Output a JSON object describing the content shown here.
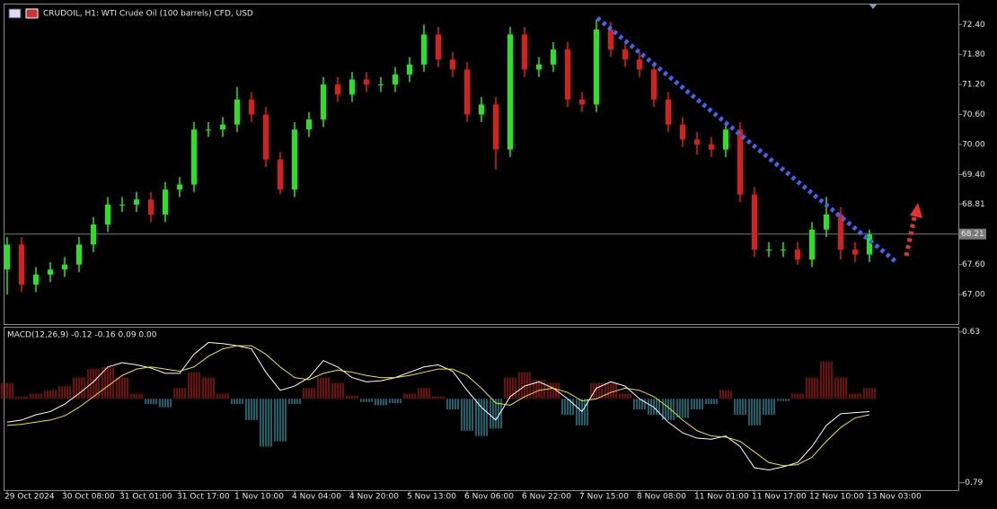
{
  "chart_data": [
    {
      "type": "candlestick",
      "title": "CRUDOIL, H1:  WTI Crude Oil (100 barrels) CFD, USD",
      "x": [
        "29 Oct 2024",
        null,
        null,
        null,
        "30 Oct 08:00",
        null,
        null,
        null,
        "31 Oct 01:00",
        null,
        null,
        null,
        "31 Oct 17:00",
        null,
        null,
        null,
        "1 Nov 10:00",
        null,
        null,
        null,
        "4 Nov 04:00",
        null,
        null,
        null,
        "4 Nov 20:00",
        null,
        null,
        null,
        "5 Nov 13:00",
        null,
        null,
        null,
        "6 Nov 06:00",
        null,
        null,
        null,
        "6 Nov 22:00",
        null,
        null,
        null,
        "7 Nov 15:00",
        null,
        null,
        null,
        "8 Nov 08:00",
        null,
        null,
        null,
        "11 Nov 01:00",
        null,
        null,
        null,
        "11 Nov 17:00",
        null,
        null,
        null,
        "12 Nov 10:00",
        null,
        null,
        null,
        "13 Nov 03:00"
      ],
      "open": [
        67.5,
        68.0,
        67.2,
        67.4,
        67.5,
        67.6,
        68.0,
        68.4,
        68.8,
        68.8,
        68.9,
        68.6,
        69.1,
        69.2,
        70.3,
        70.3,
        70.4,
        70.9,
        70.6,
        69.7,
        69.1,
        70.3,
        70.5,
        71.2,
        71.0,
        71.3,
        71.2,
        71.2,
        71.4,
        71.6,
        72.2,
        71.7,
        71.5,
        70.6,
        70.8,
        69.9,
        72.2,
        71.5,
        71.6,
        71.9,
        70.9,
        70.8,
        72.3,
        71.9,
        71.7,
        71.5,
        70.9,
        70.4,
        70.1,
        70.0,
        69.9,
        70.3,
        69.0,
        67.9,
        67.9,
        67.9,
        67.7,
        68.3,
        68.6,
        67.9,
        67.8
      ],
      "high": [
        68.15,
        68.15,
        67.55,
        67.65,
        67.75,
        68.15,
        68.55,
        68.95,
        68.95,
        69.05,
        69.05,
        69.25,
        69.35,
        70.45,
        70.45,
        70.55,
        71.15,
        71.05,
        70.75,
        69.85,
        70.45,
        70.65,
        71.35,
        71.35,
        71.45,
        71.45,
        71.35,
        71.55,
        71.75,
        72.4,
        72.35,
        71.85,
        71.65,
        70.95,
        70.95,
        72.35,
        72.35,
        71.75,
        72.05,
        72.05,
        71.05,
        72.5,
        72.45,
        72.05,
        71.85,
        71.65,
        71.05,
        70.55,
        70.25,
        70.15,
        70.45,
        70.45,
        69.15,
        68.05,
        68.05,
        68.05,
        68.45,
        68.95,
        68.75,
        68.05,
        68.3
      ],
      "low": [
        67.0,
        67.05,
        67.05,
        67.25,
        67.35,
        67.45,
        67.85,
        68.25,
        68.65,
        68.65,
        68.45,
        68.45,
        68.95,
        69.05,
        70.15,
        70.15,
        70.25,
        70.45,
        69.55,
        69.0,
        68.95,
        70.15,
        70.35,
        70.85,
        70.85,
        71.05,
        71.05,
        71.05,
        71.25,
        71.45,
        71.55,
        71.35,
        70.45,
        70.45,
        69.5,
        69.75,
        71.35,
        71.35,
        71.45,
        70.75,
        70.65,
        70.65,
        71.75,
        71.55,
        71.35,
        70.75,
        70.25,
        69.95,
        69.8,
        69.75,
        69.75,
        68.85,
        67.75,
        67.75,
        67.75,
        67.6,
        67.55,
        68.15,
        67.7,
        67.65,
        67.65
      ],
      "close": [
        68.0,
        67.2,
        67.4,
        67.5,
        67.6,
        68.0,
        68.4,
        68.8,
        68.8,
        68.9,
        68.6,
        69.1,
        69.2,
        70.3,
        70.3,
        70.4,
        70.9,
        70.6,
        69.7,
        69.1,
        70.3,
        70.5,
        71.2,
        71.0,
        71.3,
        71.2,
        71.2,
        71.4,
        71.6,
        72.2,
        71.7,
        71.5,
        70.6,
        70.8,
        69.9,
        72.2,
        71.5,
        71.6,
        71.9,
        70.9,
        70.8,
        72.3,
        71.9,
        71.7,
        71.5,
        70.9,
        70.4,
        70.1,
        70.0,
        69.9,
        70.3,
        69.0,
        67.9,
        67.9,
        67.9,
        67.7,
        68.3,
        68.6,
        67.9,
        67.8,
        68.2
      ],
      "up_color": "#22e81a",
      "down_color": "#e01b1b",
      "ylim": [
        66.41,
        72.8
      ],
      "yticks": [
        {
          "value": 72.4,
          "label": "72.40"
        },
        {
          "value": 71.8,
          "label": "71.80"
        },
        {
          "value": 71.2,
          "label": "71.20"
        },
        {
          "value": 70.6,
          "label": "70.60"
        },
        {
          "value": 70.0,
          "label": "70.00"
        },
        {
          "value": 69.4,
          "label": "69.40"
        },
        68.81,
        {
          "value": 67.6,
          "label": "67.60"
        },
        {
          "value": 67.0,
          "label": "67.00"
        }
      ],
      "current_price": 68.21
    },
    {
      "type": "macd",
      "title": "MACD(12,26,9) -0.12 -0.16 0.09 0.00",
      "ylim": [
        -0.86,
        0.67
      ],
      "yticks": [
        0.63,
        -0.79
      ],
      "series": [
        {
          "name": "histogram",
          "color": "#e01b1b",
          "negative_color": "#2fc6e0",
          "values": [
            0.15,
            0.02,
            0.05,
            0.08,
            0.12,
            0.2,
            0.28,
            0.3,
            0.2,
            0.05,
            -0.05,
            -0.08,
            0.1,
            0.25,
            0.2,
            0.05,
            -0.05,
            -0.2,
            -0.45,
            -0.4,
            -0.05,
            0.1,
            0.2,
            0.15,
            0.03,
            -0.03,
            -0.06,
            -0.04,
            0.05,
            0.1,
            0.02,
            -0.1,
            -0.3,
            -0.35,
            -0.28,
            0.2,
            0.25,
            0.18,
            0.15,
            -0.15,
            -0.25,
            0.15,
            0.15,
            0.05,
            -0.1,
            -0.15,
            -0.2,
            -0.18,
            -0.1,
            -0.05,
            0.08,
            -0.15,
            -0.25,
            -0.15,
            -0.02,
            0.05,
            0.2,
            0.35,
            0.2,
            0.05,
            0.1
          ]
        },
        {
          "name": "macd",
          "color": "#ffffff",
          "values": [
            -0.22,
            -0.2,
            -0.15,
            -0.12,
            -0.05,
            0.05,
            0.16,
            0.3,
            0.34,
            0.32,
            0.29,
            0.24,
            0.24,
            0.42,
            0.53,
            0.52,
            0.5,
            0.47,
            0.25,
            0.08,
            0.12,
            0.2,
            0.36,
            0.3,
            0.2,
            0.16,
            0.17,
            0.2,
            0.25,
            0.3,
            0.32,
            0.26,
            0.08,
            -0.08,
            -0.2,
            0.02,
            0.12,
            0.16,
            0.1,
            0.0,
            -0.12,
            0.1,
            0.16,
            0.12,
            0.0,
            -0.08,
            -0.22,
            -0.32,
            -0.37,
            -0.38,
            -0.35,
            -0.45,
            -0.65,
            -0.67,
            -0.64,
            -0.6,
            -0.45,
            -0.25,
            -0.14,
            -0.13,
            -0.12
          ]
        },
        {
          "name": "signal",
          "color": "#f2e60f",
          "values": [
            -0.25,
            -0.24,
            -0.22,
            -0.2,
            -0.16,
            -0.08,
            0.02,
            0.12,
            0.22,
            0.28,
            0.3,
            0.28,
            0.26,
            0.3,
            0.4,
            0.47,
            0.5,
            0.5,
            0.42,
            0.3,
            0.2,
            0.18,
            0.24,
            0.27,
            0.25,
            0.22,
            0.2,
            0.2,
            0.22,
            0.25,
            0.28,
            0.28,
            0.22,
            0.1,
            -0.04,
            -0.06,
            0.02,
            0.08,
            0.1,
            0.06,
            -0.02,
            0.0,
            0.06,
            0.1,
            0.08,
            0.02,
            -0.08,
            -0.2,
            -0.3,
            -0.35,
            -0.36,
            -0.4,
            -0.5,
            -0.6,
            -0.63,
            -0.62,
            -0.55,
            -0.4,
            -0.27,
            -0.18,
            -0.15
          ]
        }
      ]
    }
  ]
}
